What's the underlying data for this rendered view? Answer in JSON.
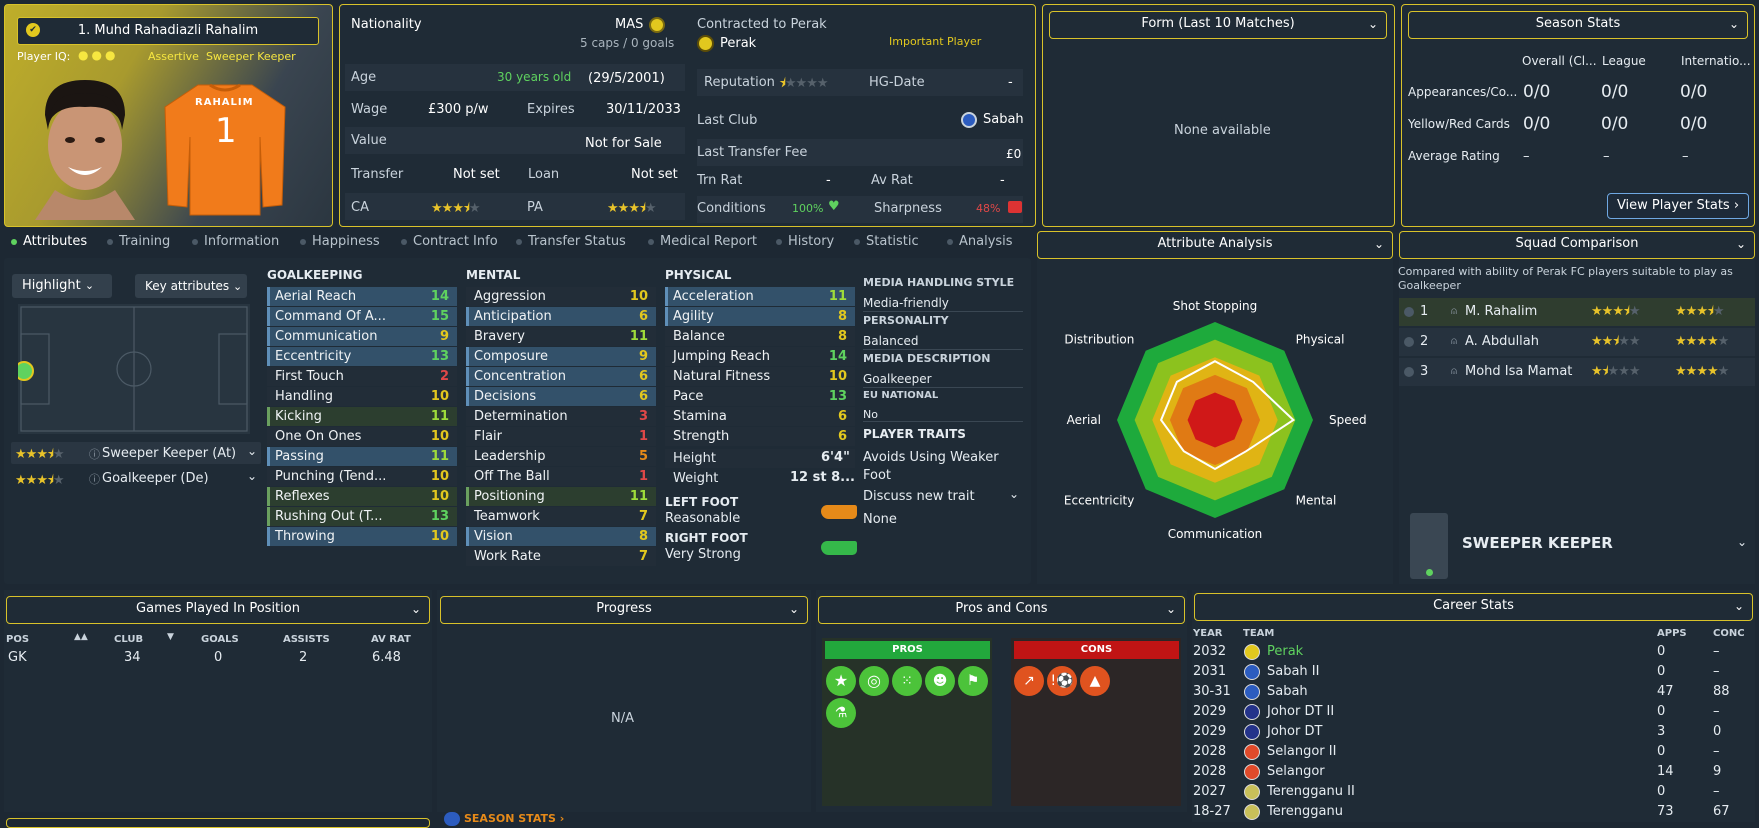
{
  "player": {
    "name": "1. Muhd Rahadiazli Rahalim",
    "iq_label": "Player IQ:",
    "role_desc1": "Assertive",
    "role_desc2": "Sweeper Keeper",
    "shirt_name": "RAHALIM",
    "shirt_number": "1"
  },
  "info": {
    "nationality_label": "Nationality",
    "nationality": "MAS",
    "caps": "5 caps / 0 goals",
    "age_label": "Age",
    "age": "30 years old",
    "dob": "(29/5/2001)",
    "wage_label": "Wage",
    "wage": "£300 p/w",
    "expires_label": "Expires",
    "expires": "30/11/2033",
    "value_label": "Value",
    "value": "Not for Sale",
    "transfer_label": "Transfer",
    "transfer": "Not set",
    "loan_label": "Loan",
    "loan": "Not set",
    "ca_label": "CA",
    "pa_label": "PA",
    "ca_stars": 3.5,
    "pa_stars": 3.5
  },
  "contract": {
    "contracted": "Contracted to Perak",
    "club": "Perak",
    "status": "Important Player",
    "rep_label": "Reputation",
    "rep_stars": 0.5,
    "hg_label": "HG-Date",
    "hg": "-",
    "lastclub_label": "Last Club",
    "lastclub": "Sabah",
    "fee_label": "Last Transfer Fee",
    "fee": "£0",
    "trn_label": "Trn Rat",
    "trn": "-",
    "avrat_label": "Av Rat",
    "avrat": "-",
    "cond_label": "Conditions",
    "cond": "100%",
    "sharp_label": "Sharpness",
    "sharp": "48%"
  },
  "form": {
    "title": "Form (Last 10 Matches)",
    "empty": "None available"
  },
  "season": {
    "title": "Season Stats",
    "cols": [
      "Overall (Cl...",
      "League",
      "Internatio..."
    ],
    "rows": [
      {
        "label": "Appearances/Co...",
        "v": [
          "0/0",
          "0/0",
          "0/0"
        ]
      },
      {
        "label": "Yellow/Red Cards",
        "v": [
          "0/0",
          "0/0",
          "0/0"
        ]
      },
      {
        "label": "Average Rating",
        "v": [
          "–",
          "–",
          "–"
        ]
      }
    ],
    "button": "View Player Stats"
  },
  "tabs": [
    "Attributes",
    "Training",
    "Information",
    "Happiness",
    "Contract Info",
    "Transfer Status",
    "Medical Report",
    "History",
    "Statistic",
    "Analysis"
  ],
  "controls": {
    "highlight": "Highlight",
    "key": "Key attributes",
    "role1": "Sweeper Keeper (At)",
    "role2": "Goalkeeper (De)"
  },
  "gk": {
    "title": "GOALKEEPING",
    "items": [
      [
        "Aerial Reach",
        "14"
      ],
      [
        "Command Of A...",
        "15"
      ],
      [
        "Communication",
        "9"
      ],
      [
        "Eccentricity",
        "13"
      ],
      [
        "First Touch",
        "2"
      ],
      [
        "Handling",
        "10"
      ],
      [
        "Kicking",
        "11"
      ],
      [
        "One On Ones",
        "10"
      ],
      [
        "Passing",
        "11"
      ],
      [
        "Punching (Tend...",
        "10"
      ],
      [
        "Reflexes",
        "10"
      ],
      [
        "Rushing Out (T...",
        "13"
      ],
      [
        "Throwing",
        "10"
      ]
    ]
  },
  "mental": {
    "title": "MENTAL",
    "items": [
      [
        "Aggression",
        "10"
      ],
      [
        "Anticipation",
        "6"
      ],
      [
        "Bravery",
        "11"
      ],
      [
        "Composure",
        "9"
      ],
      [
        "Concentration",
        "6"
      ],
      [
        "Decisions",
        "6"
      ],
      [
        "Determination",
        "3"
      ],
      [
        "Flair",
        "1"
      ],
      [
        "Leadership",
        "5"
      ],
      [
        "Off The Ball",
        "1"
      ],
      [
        "Positioning",
        "11"
      ],
      [
        "Teamwork",
        "7"
      ],
      [
        "Vision",
        "8"
      ],
      [
        "Work Rate",
        "7"
      ]
    ]
  },
  "physical": {
    "title": "PHYSICAL",
    "items": [
      [
        "Acceleration",
        "11"
      ],
      [
        "Agility",
        "8"
      ],
      [
        "Balance",
        "8"
      ],
      [
        "Jumping Reach",
        "14"
      ],
      [
        "Natural Fitness",
        "10"
      ],
      [
        "Pace",
        "13"
      ],
      [
        "Stamina",
        "6"
      ],
      [
        "Strength",
        "6"
      ]
    ],
    "height_label": "Height",
    "height": "6'4\"",
    "weight_label": "Weight",
    "weight": "12 st 8...",
    "lf_label": "LEFT FOOT",
    "lf": "Reasonable",
    "rf_label": "RIGHT FOOT",
    "rf": "Very Strong"
  },
  "media": {
    "mh_title": "MEDIA HANDLING STYLE",
    "mh": "Media-friendly",
    "pers_title": "PERSONALITY",
    "pers": "Balanced",
    "md_title": "MEDIA DESCRIPTION",
    "md": "Goalkeeper",
    "eu_title": "EU NATIONAL",
    "eu": "No",
    "traits_title": "PLAYER TRAITS",
    "trait1": "Avoids Using Weaker Foot",
    "discuss": "Discuss new trait",
    "none": "None"
  },
  "analysis": {
    "title": "Attribute Analysis",
    "labels": [
      "Shot Stopping",
      "Physical",
      "Speed",
      "Mental",
      "Communication",
      "Eccentricity",
      "Aerial",
      "Distribution"
    ],
    "values": [
      0.6,
      0.55,
      0.8,
      0.45,
      0.5,
      0.45,
      0.55,
      0.55
    ]
  },
  "squad": {
    "title": "Squad Comparison",
    "desc": "Compared with ability of Perak FC players suitable to play as Goalkeeper",
    "rows": [
      {
        "n": "1",
        "name": "M. Rahalim",
        "ca": 3.5,
        "pa": 3.5
      },
      {
        "n": "2",
        "name": "A. Abdullah",
        "ca": 2.5,
        "pa": 4
      },
      {
        "n": "3",
        "name": "Mohd Isa Mamat",
        "ca": 1.5,
        "pa": 4
      }
    ],
    "position": "SWEEPER KEEPER"
  },
  "games": {
    "title": "Games Played In Position",
    "cols": [
      "POS",
      "CLUB",
      "GOALS",
      "ASSISTS",
      "AV RAT"
    ],
    "row": [
      "GK",
      "34",
      "0",
      "2",
      "6.48"
    ]
  },
  "progress": {
    "title": "Progress",
    "empty": "N/A",
    "link": "SEASON STATS"
  },
  "proscons": {
    "title": "Pros and Cons",
    "pros": "PROS",
    "cons": "CONS"
  },
  "career": {
    "title": "Career Stats",
    "cols": [
      "YEAR",
      "TEAM",
      "APPS",
      "CONC"
    ],
    "rows": [
      [
        "2032",
        "Perak",
        "0",
        "–"
      ],
      [
        "2031",
        "Sabah II",
        "0",
        "–"
      ],
      [
        "30-31",
        "Sabah",
        "47",
        "88"
      ],
      [
        "2029",
        "Johor DT II",
        "0",
        "–"
      ],
      [
        "2029",
        "Johor DT",
        "3",
        "0"
      ],
      [
        "2028",
        "Selangor II",
        "0",
        "–"
      ],
      [
        "2028",
        "Selangor",
        "14",
        "9"
      ],
      [
        "2027",
        "Terengganu II",
        "0",
        "–"
      ],
      [
        "18-27",
        "Terengganu",
        "73",
        "67"
      ]
    ]
  },
  "colors": {
    "accent": "#d8c22a",
    "pros": "#22a83c",
    "cons": "#c01414"
  }
}
